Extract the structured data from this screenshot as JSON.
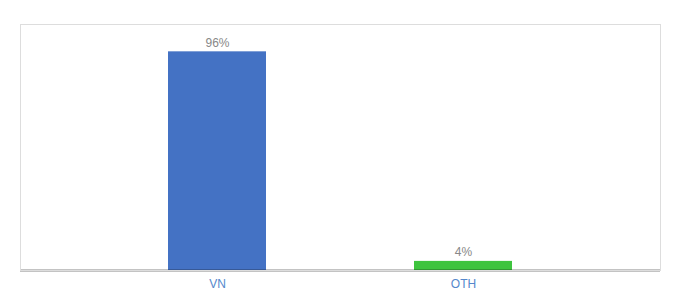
{
  "chart_data": {
    "type": "bar",
    "categories": [
      "VN",
      "OTH"
    ],
    "values": [
      96,
      4
    ],
    "value_labels": [
      "96%",
      "4%"
    ],
    "colors": [
      "#4472c4",
      "#3ec43e"
    ],
    "ylim": [
      0,
      108
    ],
    "data_labels": true,
    "tick_labels": "x"
  }
}
